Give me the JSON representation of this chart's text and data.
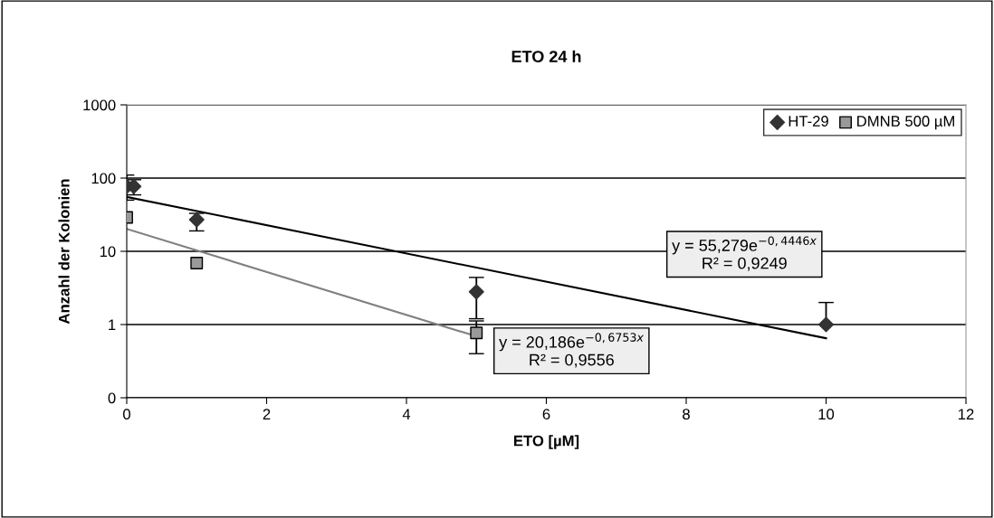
{
  "chart_data": {
    "type": "scatter",
    "title": "ETO 24 h",
    "xlabel": "ETO [µM]",
    "ylabel": "Anzahl der Kolonien",
    "log": "y",
    "grid": "y",
    "legend": "top right",
    "xlim": [
      0,
      12
    ],
    "xticks": [
      0,
      2,
      4,
      6,
      8,
      10,
      12
    ],
    "ylim": [
      0.1,
      1000
    ],
    "yticks": [
      {
        "value": 0.1,
        "label": "0"
      },
      1,
      10,
      100,
      1000
    ],
    "series": [
      {
        "name": "HT-29",
        "color": "#333333",
        "marker": "diamond",
        "x": [
          0,
          0.1,
          1,
          5,
          10
        ],
        "values": [
          77,
          77,
          27,
          2.8,
          1
        ],
        "errors": [
          [
            50,
            110
          ],
          [
            59,
            95
          ],
          [
            19,
            33
          ],
          [
            1.2,
            4.4
          ],
          [
            1,
            2
          ]
        ]
      },
      {
        "name": "DMNB 500 µM",
        "color": "#999999",
        "marker": "square",
        "x": [
          0,
          1,
          5
        ],
        "values": [
          29,
          6.9,
          0.77
        ],
        "errors": [
          null,
          null,
          [
            0.4,
            1.12
          ]
        ]
      },
      {
        "type": "line",
        "color": "#000000",
        "x": [
          0,
          10
        ],
        "values": [
          55.3,
          0.65
        ]
      },
      {
        "type": "line",
        "color": "#808080",
        "x": [
          0,
          5
        ],
        "values": [
          20.2,
          0.69
        ]
      }
    ],
    "annotations": [
      "y = 55,279e$^{−0,4446x}$\nR² = 0,9249",
      "y = 20,186e$^{−0,6753x}$\nR² = 0,9556"
    ]
  }
}
